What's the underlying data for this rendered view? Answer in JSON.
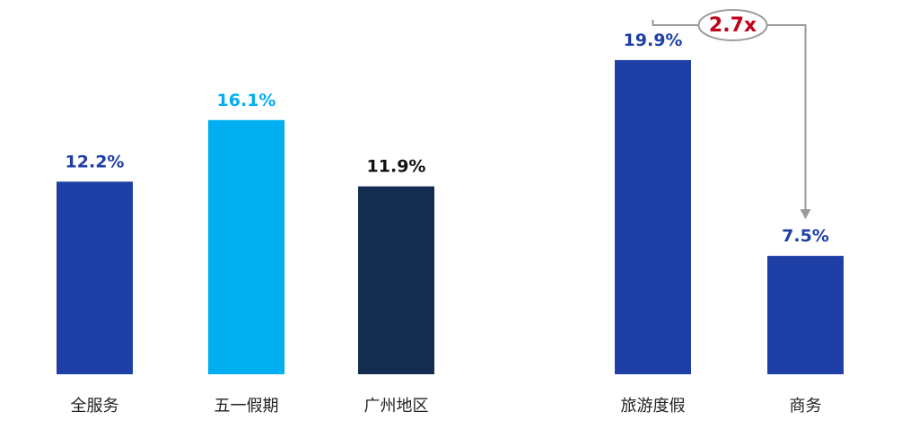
{
  "chart_data": [
    {
      "type": "bar",
      "categories": [
        "全服务",
        "五一假期",
        "广州地区"
      ],
      "values": [
        12.2,
        16.1,
        11.9
      ],
      "value_labels": [
        "12.2%",
        "16.1%",
        "11.9%"
      ],
      "bar_colors": [
        "#1e3fa6",
        "#00aff0",
        "#132c4f"
      ],
      "label_colors": [
        "#1e3fa6",
        "#00aff0",
        "#111111"
      ],
      "ylim": [
        0,
        22
      ]
    },
    {
      "type": "bar",
      "categories": [
        "旅游度假",
        "商务"
      ],
      "values": [
        19.9,
        7.5
      ],
      "value_labels": [
        "19.9%",
        "7.5%"
      ],
      "bar_colors": [
        "#1e3fa6",
        "#1e3fa6"
      ],
      "label_colors": [
        "#1e3fa6",
        "#1e3fa6"
      ],
      "ylim": [
        0,
        22
      ],
      "annotation": {
        "text": "2.7x",
        "color": "#c0001a"
      }
    }
  ]
}
